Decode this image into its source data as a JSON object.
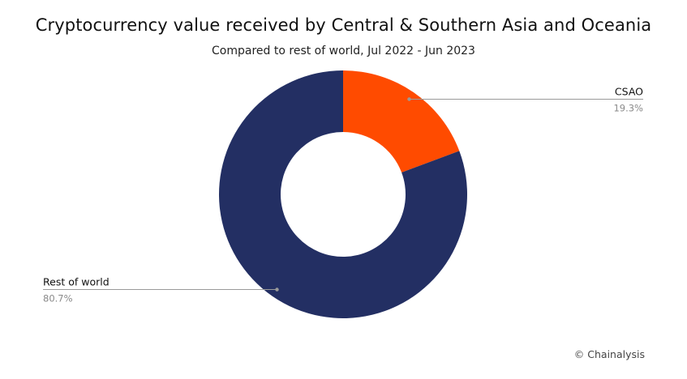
{
  "chart_data": {
    "type": "pie",
    "title": "Cryptocurrency value received by Central & Southern Asia and Oceania",
    "subtitle": "Compared to rest of world, Jul 2022 - Jun 2023",
    "slices": [
      {
        "label": "CSAO",
        "value": 19.3,
        "value_label": "19.3%",
        "color": "#ff4b00"
      },
      {
        "label": "Rest of world",
        "value": 80.7,
        "value_label": "80.7%",
        "color": "#232f63"
      }
    ],
    "legend": "none",
    "donut": true
  },
  "credit": "© Chainalysis"
}
